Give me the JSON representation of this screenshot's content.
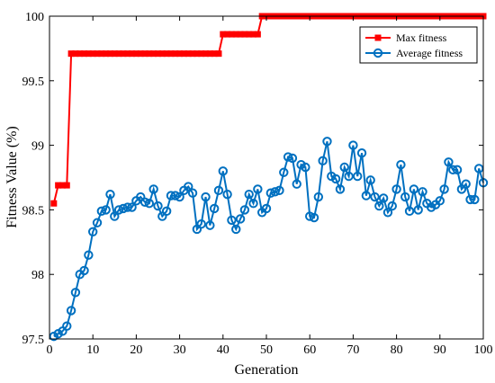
{
  "chart_data": {
    "type": "line",
    "xlabel": "Generation",
    "ylabel": "Fitness Value (%)",
    "xlim": [
      0,
      100
    ],
    "ylim": [
      97.5,
      100
    ],
    "xticks": [
      0,
      10,
      20,
      30,
      40,
      50,
      60,
      70,
      80,
      90,
      100
    ],
    "yticks": [
      97.5,
      98,
      98.5,
      99,
      99.5,
      100
    ],
    "ytick_labels": [
      "97.5",
      "98",
      "98.5",
      "99",
      "99.5",
      "100"
    ],
    "grid": false,
    "legend_position": "top-right",
    "x": [
      1,
      2,
      3,
      4,
      5,
      6,
      7,
      8,
      9,
      10,
      11,
      12,
      13,
      14,
      15,
      16,
      17,
      18,
      19,
      20,
      21,
      22,
      23,
      24,
      25,
      26,
      27,
      28,
      29,
      30,
      31,
      32,
      33,
      34,
      35,
      36,
      37,
      38,
      39,
      40,
      41,
      42,
      43,
      44,
      45,
      46,
      47,
      48,
      49,
      50,
      51,
      52,
      53,
      54,
      55,
      56,
      57,
      58,
      59,
      60,
      61,
      62,
      63,
      64,
      65,
      66,
      67,
      68,
      69,
      70,
      71,
      72,
      73,
      74,
      75,
      76,
      77,
      78,
      79,
      80,
      81,
      82,
      83,
      84,
      85,
      86,
      87,
      88,
      89,
      90,
      91,
      92,
      93,
      94,
      95,
      96,
      97,
      98,
      99,
      100
    ],
    "series": [
      {
        "name": "Max fitness",
        "color": "#ff0000",
        "marker": "square",
        "values": [
          98.55,
          98.69,
          98.69,
          98.69,
          99.71,
          99.71,
          99.71,
          99.71,
          99.71,
          99.71,
          99.71,
          99.71,
          99.71,
          99.71,
          99.71,
          99.71,
          99.71,
          99.71,
          99.71,
          99.71,
          99.71,
          99.71,
          99.71,
          99.71,
          99.71,
          99.71,
          99.71,
          99.71,
          99.71,
          99.71,
          99.71,
          99.71,
          99.71,
          99.71,
          99.71,
          99.71,
          99.71,
          99.71,
          99.71,
          99.86,
          99.86,
          99.86,
          99.86,
          99.86,
          99.86,
          99.86,
          99.86,
          99.86,
          100,
          100,
          100,
          100,
          100,
          100,
          100,
          100,
          100,
          100,
          100,
          100,
          100,
          100,
          100,
          100,
          100,
          100,
          100,
          100,
          100,
          100,
          100,
          100,
          100,
          100,
          100,
          100,
          100,
          100,
          100,
          100,
          100,
          100,
          100,
          100,
          100,
          100,
          100,
          100,
          100,
          100,
          100,
          100,
          100,
          100,
          100,
          100,
          100,
          100,
          100,
          100
        ]
      },
      {
        "name": "Average fitness",
        "color": "#0070c0",
        "marker": "circle",
        "values": [
          97.52,
          97.54,
          97.56,
          97.6,
          97.72,
          97.86,
          98.0,
          98.03,
          98.15,
          98.33,
          98.4,
          98.49,
          98.5,
          98.62,
          98.45,
          98.5,
          98.51,
          98.52,
          98.52,
          98.57,
          98.6,
          98.56,
          98.55,
          98.66,
          98.53,
          98.45,
          98.49,
          98.61,
          98.61,
          98.6,
          98.65,
          98.68,
          98.63,
          98.35,
          98.39,
          98.6,
          98.38,
          98.51,
          98.65,
          98.8,
          98.62,
          98.42,
          98.35,
          98.43,
          98.5,
          98.62,
          98.55,
          98.66,
          98.48,
          98.51,
          98.63,
          98.64,
          98.65,
          98.79,
          98.91,
          98.9,
          98.7,
          98.85,
          98.83,
          98.45,
          98.44,
          98.6,
          98.88,
          99.03,
          98.76,
          98.74,
          98.66,
          98.83,
          98.76,
          99.0,
          98.76,
          98.94,
          98.61,
          98.73,
          98.6,
          98.53,
          98.59,
          98.48,
          98.53,
          98.66,
          98.85,
          98.6,
          98.49,
          98.66,
          98.5,
          98.64,
          98.55,
          98.52,
          98.54,
          98.57,
          98.66,
          98.87,
          98.81,
          98.81,
          98.66,
          98.7,
          98.58,
          98.58,
          98.82,
          98.71
        ]
      }
    ]
  }
}
